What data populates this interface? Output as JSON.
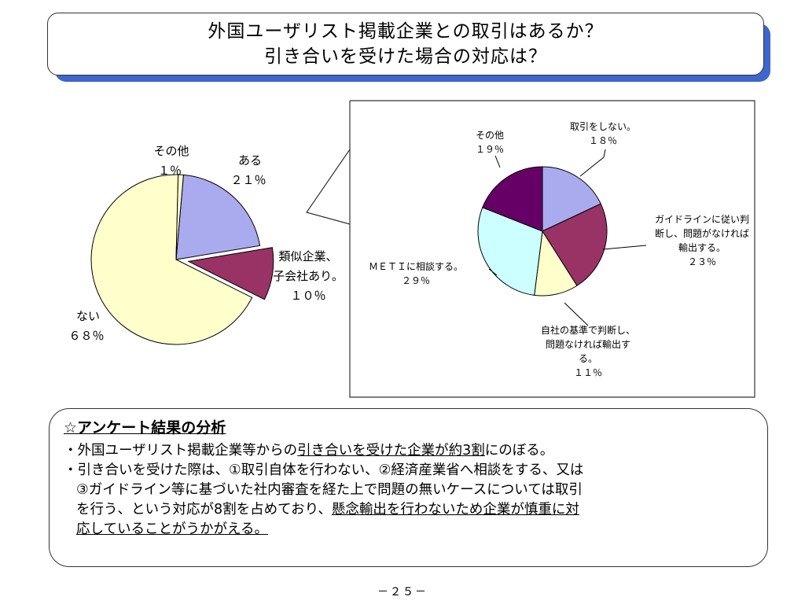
{
  "title": {
    "line1": "外国ユーザリスト掲載企業との取引はあるか？",
    "line2": "引き合いを受けた場合の対応は？"
  },
  "chart_data": [
    {
      "type": "pie",
      "slices": [
        {
          "label": [
            "ある",
            "２１％"
          ],
          "value": 21,
          "color": "#aaaaee",
          "exploded": false
        },
        {
          "label": [
            "類似企業、",
            "子会社あり。",
            "１０％"
          ],
          "value": 10,
          "color": "#993366",
          "exploded": true
        },
        {
          "label": [
            "ない",
            "６８％"
          ],
          "value": 68,
          "color": "#ffffcc",
          "exploded": false
        },
        {
          "label": [
            "その他",
            "１％"
          ],
          "value": 1,
          "color": "#ffffcc",
          "exploded": false
        }
      ]
    },
    {
      "type": "pie",
      "slices": [
        {
          "label": [
            "取引をしない。",
            "１８％"
          ],
          "value": 18,
          "color": "#aaaaee"
        },
        {
          "label": [
            "ガイドラインに従い判",
            "断し、問題がなければ",
            "輸出する。",
            "２３％"
          ],
          "value": 23,
          "color": "#993366"
        },
        {
          "label": [
            "自社の基準で判断し、",
            "問題なければ輸出す",
            "る。",
            "１１％"
          ],
          "value": 11,
          "color": "#ffffcc"
        },
        {
          "label": [
            "ＭＥＴＩに相談する。",
            "２９％"
          ],
          "value": 29,
          "color": "#ccffff"
        },
        {
          "label": [
            "その他",
            "１９％"
          ],
          "value": 19,
          "color": "#660066"
        }
      ]
    }
  ],
  "analysis": {
    "heading": "☆アンケート結果の分析",
    "b1_pre": "・外国ユーザリスト掲載企業等からの",
    "b1_u": "引き合いを受けた企業が約3割",
    "b1_post": "にのぼる。",
    "b2_l1": "・引き合いを受けた際は、①取引自体を行わない、②経済産業省へ相談をする、又は",
    "b2_l2": "③ガイドライン等に基づいた社内審査を経た上で問題の無いケースについては取引",
    "b2_l3_pre": "を行う、という対応が8割を占めており、",
    "b2_l3_u": "懸念輸出を行わないため企業が慎重に対",
    "b2_l4_u": "応していることがうかがえる。"
  },
  "page_number": "－２５－"
}
